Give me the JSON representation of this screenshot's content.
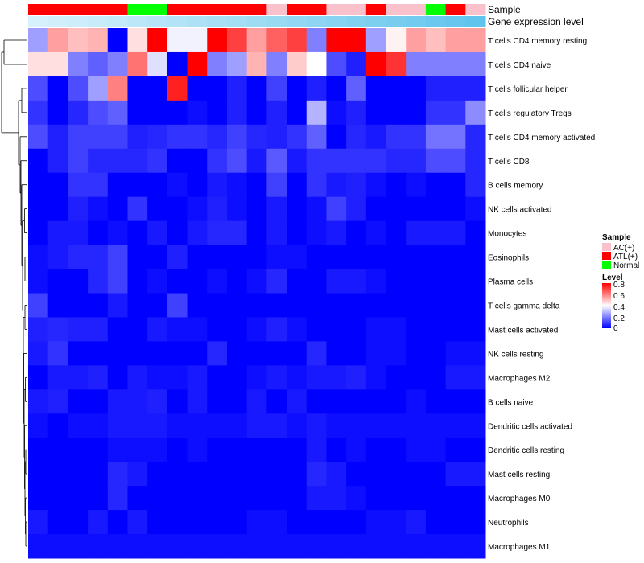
{
  "chart_data": {
    "type": "heatmap",
    "title": "",
    "annotation_tracks": [
      {
        "name": "Sample",
        "label": "Sample"
      },
      {
        "name": "Gene expression level",
        "label": "Gene expression level"
      }
    ],
    "sample_groups": [
      "ATL(+)",
      "ATL(+)",
      "ATL(+)",
      "ATL(+)",
      "ATL(+)",
      "Normal",
      "Normal",
      "ATL(+)",
      "ATL(+)",
      "ATL(+)",
      "ATL(+)",
      "ATL(+)",
      "AC(+)",
      "ATL(+)",
      "ATL(+)",
      "AC(+)",
      "AC(+)",
      "ATL(+)",
      "AC(+)",
      "AC(+)",
      "Normal",
      "ATL(+)",
      "AC(+)"
    ],
    "expression_level": [
      0.12,
      0.15,
      0.18,
      0.2,
      0.23,
      0.27,
      0.3,
      0.33,
      0.36,
      0.39,
      0.42,
      0.45,
      0.48,
      0.52,
      0.55,
      0.58,
      0.62,
      0.65,
      0.68,
      0.71,
      0.75,
      0.78,
      0.82
    ],
    "rows": [
      "T cells CD4 memory resting",
      "T cells CD4 naive",
      "T cells follicular helper",
      "T cells regulatory  Tregs",
      "T cells CD4 memory activated",
      "T cells CD8",
      "B cells memory",
      "NK cells activated",
      "Monocytes",
      "Eosinophils",
      "Plasma cells",
      "T cells gamma delta",
      "Mast cells activated",
      "NK cells resting",
      "Macrophages M2",
      "B cells naive",
      "Dendritic cells activated",
      "Dendritic cells resting",
      "Mast cells resting",
      "Macrophages M0",
      "Neutrophils",
      "Macrophages M1"
    ],
    "values": [
      [
        0.25,
        0.55,
        0.5,
        0.52,
        0.0,
        0.45,
        0.8,
        0.38,
        0.38,
        0.8,
        0.7,
        0.55,
        0.65,
        0.7,
        0.2,
        0.8,
        0.8,
        0.25,
        0.42,
        0.55,
        0.5,
        0.55,
        0.55
      ],
      [
        0.45,
        0.45,
        0.2,
        0.15,
        0.2,
        0.62,
        0.35,
        0.0,
        0.8,
        0.2,
        0.25,
        0.52,
        0.2,
        0.48,
        0.4,
        0.12,
        0.05,
        0.8,
        0.72,
        0.2,
        0.2,
        0.2,
        0.2
      ],
      [
        0.12,
        0.0,
        0.12,
        0.25,
        0.6,
        0.0,
        0.0,
        0.75,
        0.0,
        0.0,
        0.05,
        0.0,
        0.1,
        0.0,
        0.05,
        0.0,
        0.15,
        0.0,
        0.0,
        0.0,
        0.05,
        0.05,
        0.05
      ],
      [
        0.08,
        0.0,
        0.06,
        0.12,
        0.15,
        0.0,
        0.0,
        0.0,
        0.02,
        0.0,
        0.05,
        0.0,
        0.05,
        0.0,
        0.28,
        0.02,
        0.05,
        0.0,
        0.0,
        0.0,
        0.08,
        0.08,
        0.22
      ],
      [
        0.12,
        0.05,
        0.1,
        0.1,
        0.1,
        0.05,
        0.06,
        0.08,
        0.08,
        0.06,
        0.1,
        0.06,
        0.05,
        0.08,
        0.15,
        0.0,
        0.06,
        0.04,
        0.08,
        0.08,
        0.18,
        0.18,
        0.06
      ],
      [
        0.0,
        0.05,
        0.1,
        0.06,
        0.06,
        0.06,
        0.08,
        0.0,
        0.0,
        0.08,
        0.12,
        0.04,
        0.14,
        0.04,
        0.08,
        0.08,
        0.08,
        0.08,
        0.06,
        0.06,
        0.12,
        0.12,
        0.06
      ],
      [
        0.0,
        0.0,
        0.08,
        0.08,
        0.0,
        0.0,
        0.0,
        0.02,
        0.0,
        0.04,
        0.02,
        0.0,
        0.1,
        0.0,
        0.08,
        0.04,
        0.05,
        0.02,
        0.0,
        0.02,
        0.0,
        0.0,
        0.06
      ],
      [
        0.0,
        0.0,
        0.05,
        0.02,
        0.0,
        0.08,
        0.0,
        0.0,
        0.02,
        0.05,
        0.02,
        0.0,
        0.04,
        0.0,
        0.02,
        0.1,
        0.05,
        0.0,
        0.0,
        0.0,
        0.0,
        0.0,
        0.02
      ],
      [
        0.0,
        0.04,
        0.04,
        0.0,
        0.02,
        0.0,
        0.04,
        0.0,
        0.04,
        0.06,
        0.06,
        0.0,
        0.04,
        0.0,
        0.02,
        0.04,
        0.0,
        0.02,
        0.0,
        0.04,
        0.04,
        0.04,
        0.0
      ],
      [
        0.02,
        0.04,
        0.06,
        0.06,
        0.1,
        0.0,
        0.0,
        0.05,
        0.0,
        0.0,
        0.0,
        0.0,
        0.02,
        0.02,
        0.0,
        0.0,
        0.0,
        0.0,
        0.0,
        0.0,
        0.0,
        0.0,
        0.0
      ],
      [
        0.02,
        0.0,
        0.0,
        0.06,
        0.1,
        0.0,
        0.02,
        0.0,
        0.0,
        0.02,
        0.0,
        0.02,
        0.06,
        0.0,
        0.0,
        0.04,
        0.04,
        0.02,
        0.0,
        0.0,
        0.0,
        0.0,
        0.0
      ],
      [
        0.1,
        0.0,
        0.0,
        0.0,
        0.04,
        0.0,
        0.0,
        0.1,
        0.0,
        0.0,
        0.0,
        0.0,
        0.0,
        0.0,
        0.0,
        0.0,
        0.0,
        0.0,
        0.0,
        0.0,
        0.0,
        0.0,
        0.0
      ],
      [
        0.05,
        0.06,
        0.05,
        0.05,
        0.0,
        0.0,
        0.04,
        0.02,
        0.02,
        0.0,
        0.0,
        0.02,
        0.05,
        0.02,
        0.0,
        0.0,
        0.0,
        0.02,
        0.02,
        0.0,
        0.0,
        0.0,
        0.0
      ],
      [
        0.04,
        0.08,
        0.0,
        0.0,
        0.0,
        0.0,
        0.0,
        0.0,
        0.0,
        0.06,
        0.0,
        0.0,
        0.0,
        0.0,
        0.06,
        0.0,
        0.0,
        0.02,
        0.02,
        0.0,
        0.0,
        0.02,
        0.02
      ],
      [
        0.0,
        0.04,
        0.04,
        0.05,
        0.0,
        0.04,
        0.02,
        0.02,
        0.04,
        0.0,
        0.0,
        0.02,
        0.04,
        0.02,
        0.04,
        0.04,
        0.05,
        0.02,
        0.0,
        0.0,
        0.0,
        0.04,
        0.04
      ],
      [
        0.04,
        0.05,
        0.0,
        0.0,
        0.04,
        0.04,
        0.05,
        0.0,
        0.04,
        0.0,
        0.0,
        0.04,
        0.0,
        0.04,
        0.0,
        0.0,
        0.0,
        0.0,
        0.0,
        0.02,
        0.0,
        0.0,
        0.0
      ],
      [
        0.02,
        0.0,
        0.02,
        0.02,
        0.04,
        0.04,
        0.04,
        0.02,
        0.02,
        0.02,
        0.02,
        0.04,
        0.04,
        0.02,
        0.04,
        0.02,
        0.02,
        0.02,
        0.02,
        0.02,
        0.02,
        0.02,
        0.02
      ],
      [
        0.0,
        0.0,
        0.0,
        0.0,
        0.02,
        0.02,
        0.02,
        0.0,
        0.02,
        0.0,
        0.0,
        0.0,
        0.0,
        0.0,
        0.04,
        0.0,
        0.02,
        0.0,
        0.0,
        0.02,
        0.02,
        0.0,
        0.0
      ],
      [
        0.0,
        0.0,
        0.0,
        0.0,
        0.06,
        0.04,
        0.0,
        0.0,
        0.0,
        0.0,
        0.0,
        0.0,
        0.0,
        0.0,
        0.06,
        0.04,
        0.0,
        0.0,
        0.0,
        0.0,
        0.0,
        0.04,
        0.04
      ],
      [
        0.0,
        0.0,
        0.0,
        0.0,
        0.06,
        0.0,
        0.0,
        0.0,
        0.0,
        0.0,
        0.0,
        0.0,
        0.0,
        0.0,
        0.04,
        0.04,
        0.02,
        0.0,
        0.0,
        0.0,
        0.0,
        0.0,
        0.0
      ],
      [
        0.04,
        0.0,
        0.0,
        0.04,
        0.0,
        0.04,
        0.0,
        0.0,
        0.0,
        0.0,
        0.0,
        0.02,
        0.02,
        0.0,
        0.0,
        0.0,
        0.0,
        0.02,
        0.02,
        0.04,
        0.0,
        0.0,
        0.0
      ],
      [
        0.02,
        0.02,
        0.02,
        0.02,
        0.02,
        0.02,
        0.02,
        0.02,
        0.02,
        0.02,
        0.02,
        0.02,
        0.02,
        0.02,
        0.02,
        0.02,
        0.02,
        0.02,
        0.02,
        0.02,
        0.02,
        0.02,
        0.02
      ]
    ],
    "color_scale": {
      "low": "#0000ff",
      "mid": "#ffffff",
      "high": "#ff0000",
      "min": 0,
      "max": 0.8,
      "mid_value": 0.4
    },
    "xlabel": "",
    "ylabel": "",
    "legend": {
      "position": "right",
      "sample_title": "Sample",
      "sample_entries": [
        {
          "label": "AC(+)",
          "color": "#f9c1cc"
        },
        {
          "label": "ATL(+)",
          "color": "#ff0000"
        },
        {
          "label": "Normal",
          "color": "#00ff00"
        }
      ],
      "level_title": "Level",
      "level_ticks": [
        "0.8",
        "0.6",
        "0.4",
        "0.2",
        "0"
      ]
    }
  }
}
